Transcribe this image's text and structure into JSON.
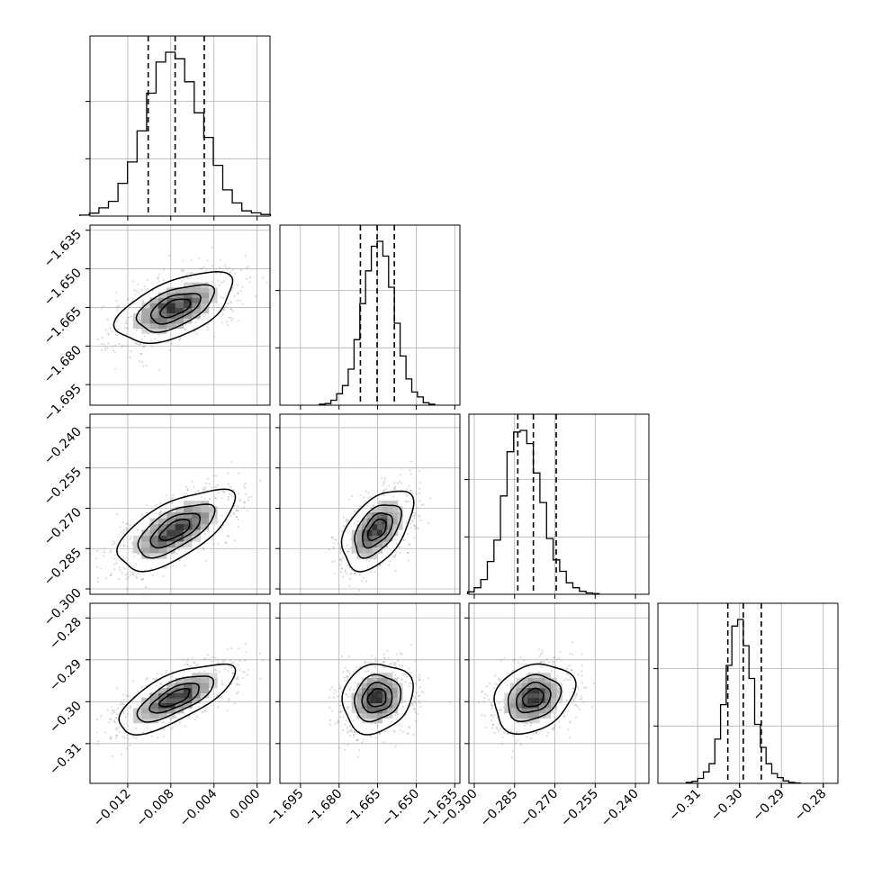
{
  "chart_data": {
    "type": "corner",
    "n_params": 4,
    "params": [
      {
        "range": [
          -0.0155,
          0.0012
        ],
        "ticks": [
          -0.012,
          -0.008,
          -0.004,
          0.0
        ],
        "tick_labels": [
          "−0.012",
          "−0.008",
          "−0.004",
          "0.000"
        ],
        "quantiles": [
          -0.0101,
          -0.0076,
          -0.0049
        ],
        "hist": [
          0.006,
          0.018,
          0.05,
          0.09,
          0.2,
          0.33,
          0.52,
          0.75,
          0.94,
          1.0,
          0.96,
          0.82,
          0.63,
          0.48,
          0.31,
          0.16,
          0.08,
          0.032,
          0.02,
          0.01
        ],
        "mean": -0.0076,
        "sd": 0.0026
      },
      {
        "range": [
          -1.703,
          -1.633
        ],
        "ticks": [
          -1.695,
          -1.68,
          -1.665,
          -1.65,
          -1.635
        ],
        "tick_labels": [
          "−1.695",
          "−1.680",
          "−1.665",
          "−1.650",
          "−1.635"
        ],
        "quantiles": [
          -1.6717,
          -1.6652,
          -1.6585
        ],
        "hist": [
          0.006,
          0.01,
          0.03,
          0.07,
          0.12,
          0.22,
          0.4,
          0.62,
          0.82,
          0.97,
          1.0,
          0.91,
          0.72,
          0.5,
          0.3,
          0.16,
          0.08,
          0.05,
          0.015,
          0.006
        ],
        "mean": -1.6652,
        "sd": 0.0066
      },
      {
        "range": [
          -0.302,
          -0.235
        ],
        "ticks": [
          -0.3,
          -0.285,
          -0.27,
          -0.255,
          -0.24
        ],
        "tick_labels": [
          "−0.300",
          "−0.285",
          "−0.270",
          "−0.255",
          "−0.240"
        ],
        "quantiles": [
          -0.2838,
          -0.278,
          -0.2695
        ],
        "hist": [
          0.015,
          0.04,
          0.09,
          0.2,
          0.33,
          0.6,
          0.87,
          0.99,
          1.0,
          0.92,
          0.74,
          0.56,
          0.34,
          0.21,
          0.14,
          0.07,
          0.04,
          0.018,
          0.008,
          0.004
        ],
        "mean": -0.278,
        "sd": 0.0072
      },
      {
        "range": [
          -0.3195,
          -0.2765
        ],
        "ticks": [
          -0.31,
          -0.3,
          -0.29,
          -0.28
        ],
        "tick_labels": [
          "−0.31",
          "−0.30",
          "−0.29",
          "−0.28"
        ],
        "quantiles": [
          -0.3028,
          -0.2991,
          -0.2948
        ],
        "hist": [
          0.006,
          0.012,
          0.03,
          0.07,
          0.12,
          0.27,
          0.48,
          0.72,
          0.96,
          1.0,
          0.84,
          0.64,
          0.36,
          0.22,
          0.12,
          0.06,
          0.035,
          0.015,
          0.006,
          0.003
        ],
        "mean": -0.2991,
        "sd": 0.004
      }
    ],
    "correlations": [
      [
        1,
        0.55,
        0.65,
        0.7
      ],
      [
        0.55,
        1,
        0.5,
        0.15
      ],
      [
        0.65,
        0.5,
        1,
        0.25
      ],
      [
        0.7,
        0.15,
        0.25,
        1
      ]
    ],
    "contour_levels_sigma": [
      0.5,
      1.0,
      1.5,
      2.0
    ],
    "grid": true,
    "legend": "none",
    "colors": {
      "line": "#000000",
      "grid": "#b0b0b0",
      "scatter": "#808080"
    }
  }
}
